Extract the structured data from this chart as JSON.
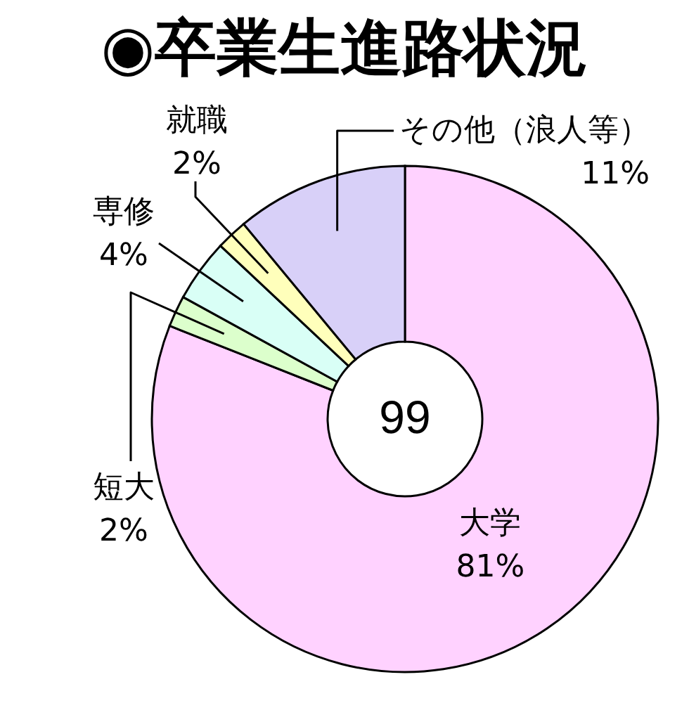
{
  "chart_data": {
    "type": "donut",
    "title": "◉卒業生進路状況",
    "categories": [
      "大学",
      "短大",
      "専修",
      "就職",
      "その他（浪人等）"
    ],
    "values": [
      81,
      2,
      4,
      2,
      11
    ],
    "colors": [
      "#ffd2ff",
      "#dcffcc",
      "#d9fff6",
      "#ffffbb",
      "#d8d0f8"
    ],
    "value_labels": [
      "81%",
      "2%",
      "4%",
      "2%",
      "11%"
    ],
    "annotations": [
      "99"
    ]
  }
}
